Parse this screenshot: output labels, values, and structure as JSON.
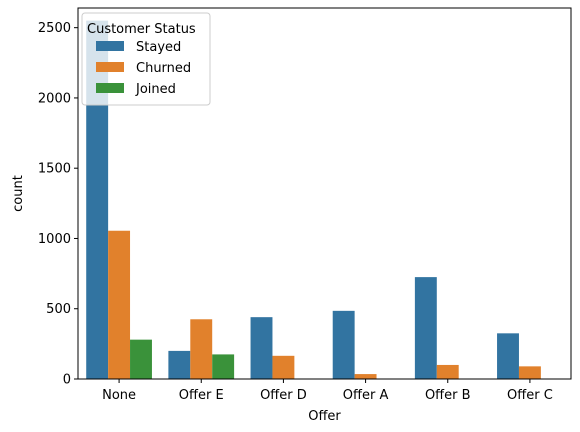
{
  "chart_data": {
    "type": "bar",
    "title": "",
    "xlabel": "Offer",
    "ylabel": "count",
    "categories": [
      "None",
      "Offer E",
      "Offer D",
      "Offer A",
      "Offer B",
      "Offer C"
    ],
    "ylim": [
      0,
      2640
    ],
    "yticks": [
      0,
      500,
      1000,
      1500,
      2000,
      2500
    ],
    "grid": false,
    "legend": {
      "title": "Customer Status",
      "placement": "top-left"
    },
    "series": [
      {
        "name": "Stayed",
        "color": "#3274a1",
        "values": [
          2550,
          200,
          440,
          485,
          725,
          325
        ]
      },
      {
        "name": "Churned",
        "color": "#e1812c",
        "values": [
          1055,
          425,
          165,
          35,
          100,
          90
        ]
      },
      {
        "name": "Joined",
        "color": "#3a923a",
        "values": [
          280,
          175,
          0,
          0,
          0,
          0
        ]
      }
    ]
  }
}
